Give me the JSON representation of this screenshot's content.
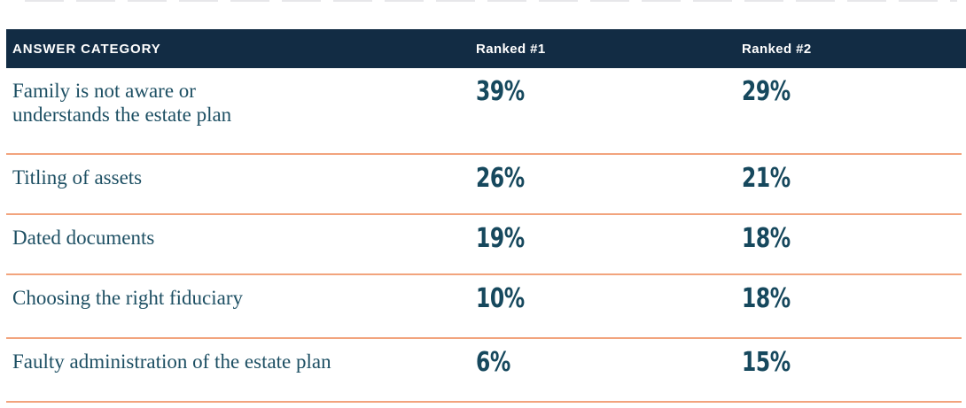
{
  "chart_data": {
    "type": "table",
    "title": "",
    "columns": [
      "ANSWER CATEGORY",
      "Ranked #1",
      "Ranked #2"
    ],
    "rows": [
      {
        "category": "Family is not aware or understands the estate plan",
        "ranked1": 39,
        "ranked2": 29
      },
      {
        "category": "Titling of assets",
        "ranked1": 26,
        "ranked2": 21
      },
      {
        "category": "Dated documents",
        "ranked1": 19,
        "ranked2": 18
      },
      {
        "category": "Choosing the right fiduciary",
        "ranked1": 10,
        "ranked2": 18
      },
      {
        "category": "Faulty administration of the estate plan",
        "ranked1": 6,
        "ranked2": 15
      }
    ],
    "units": "percent"
  },
  "table": {
    "columns": [
      "ANSWER CATEGORY",
      "Ranked #1",
      "Ranked #2"
    ],
    "rows": [
      {
        "category": "Family is not aware or\nunderstands the estate plan",
        "ranked1": "39%",
        "ranked2": "29%"
      },
      {
        "category": "Titling of assets",
        "ranked1": "26%",
        "ranked2": "21%"
      },
      {
        "category": "Dated documents",
        "ranked1": "19%",
        "ranked2": "18%"
      },
      {
        "category": "Choosing the right fiduciary",
        "ranked1": "10%",
        "ranked2": "18%"
      },
      {
        "category": "Faulty administration of the estate plan",
        "ranked1": "6%",
        "ranked2": "15%"
      }
    ]
  },
  "colors": {
    "header_background": "#122c44",
    "header_text": "#ffffff",
    "category_text": "#1d4f63",
    "percent_text": "#16485d",
    "divider": "#f2a47d",
    "page_background": "#ffffff"
  }
}
